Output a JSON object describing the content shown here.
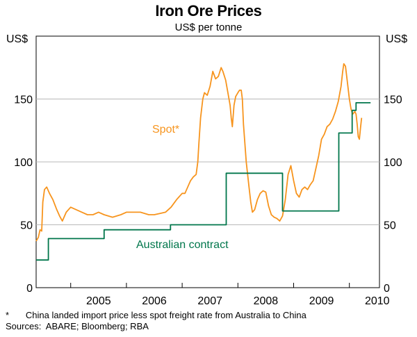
{
  "chart_data": {
    "type": "line",
    "title": "Iron Ore Prices",
    "subtitle": "US$ per tonne",
    "ylabel_left": "US$",
    "ylabel_right": "US$",
    "ylim": [
      0,
      200
    ],
    "yticks": [
      0,
      50,
      100,
      150
    ],
    "xlim": [
      2004.38,
      2010.54
    ],
    "xtick_labels": [
      {
        "label": "2005",
        "year": 2005
      },
      {
        "label": "2006",
        "year": 2006
      },
      {
        "label": "2007",
        "year": 2007
      },
      {
        "label": "2008",
        "year": 2008
      },
      {
        "label": "2009",
        "year": 2009
      },
      {
        "label": "2010",
        "year": 2010
      }
    ],
    "year_boundaries": [
      2005,
      2006,
      2007,
      2008,
      2009,
      2010
    ],
    "grid": true,
    "series": [
      {
        "name": "Spot*",
        "label": "Spot*",
        "color": "#f7941d",
        "points": [
          [
            2004.38,
            37
          ],
          [
            2004.42,
            40
          ],
          [
            2004.45,
            46
          ],
          [
            2004.48,
            45
          ],
          [
            2004.5,
            68
          ],
          [
            2004.53,
            78
          ],
          [
            2004.57,
            80
          ],
          [
            2004.62,
            75
          ],
          [
            2004.68,
            70
          ],
          [
            2004.75,
            62
          ],
          [
            2004.8,
            57
          ],
          [
            2004.85,
            53
          ],
          [
            2004.92,
            60
          ],
          [
            2005.0,
            64
          ],
          [
            2005.1,
            62
          ],
          [
            2005.2,
            60
          ],
          [
            2005.3,
            58
          ],
          [
            2005.4,
            58
          ],
          [
            2005.5,
            60
          ],
          [
            2005.6,
            58
          ],
          [
            2005.75,
            56
          ],
          [
            2005.9,
            58
          ],
          [
            2006.0,
            60
          ],
          [
            2006.1,
            60
          ],
          [
            2006.25,
            60
          ],
          [
            2006.4,
            58
          ],
          [
            2006.5,
            58
          ],
          [
            2006.6,
            59
          ],
          [
            2006.7,
            60
          ],
          [
            2006.8,
            64
          ],
          [
            2006.9,
            70
          ],
          [
            2007.0,
            75
          ],
          [
            2007.05,
            75
          ],
          [
            2007.1,
            80
          ],
          [
            2007.15,
            85
          ],
          [
            2007.2,
            88
          ],
          [
            2007.25,
            90
          ],
          [
            2007.28,
            100
          ],
          [
            2007.3,
            115
          ],
          [
            2007.33,
            135
          ],
          [
            2007.37,
            150
          ],
          [
            2007.4,
            155
          ],
          [
            2007.45,
            153
          ],
          [
            2007.5,
            160
          ],
          [
            2007.55,
            172
          ],
          [
            2007.6,
            166
          ],
          [
            2007.65,
            168
          ],
          [
            2007.7,
            175
          ],
          [
            2007.73,
            172
          ],
          [
            2007.78,
            165
          ],
          [
            2007.82,
            155
          ],
          [
            2007.86,
            145
          ],
          [
            2007.88,
            135
          ],
          [
            2007.9,
            128
          ],
          [
            2007.93,
            145
          ],
          [
            2007.96,
            152
          ],
          [
            2008.0,
            155
          ],
          [
            2008.03,
            157
          ],
          [
            2008.06,
            157
          ],
          [
            2008.08,
            150
          ],
          [
            2008.1,
            130
          ],
          [
            2008.15,
            100
          ],
          [
            2008.2,
            80
          ],
          [
            2008.23,
            68
          ],
          [
            2008.26,
            60
          ],
          [
            2008.3,
            62
          ],
          [
            2008.35,
            70
          ],
          [
            2008.4,
            75
          ],
          [
            2008.45,
            77
          ],
          [
            2008.5,
            76
          ],
          [
            2008.55,
            65
          ],
          [
            2008.6,
            58
          ],
          [
            2008.65,
            56
          ],
          [
            2008.7,
            55
          ],
          [
            2008.75,
            53
          ],
          [
            2008.8,
            57
          ],
          [
            2008.85,
            70
          ],
          [
            2008.9,
            90
          ],
          [
            2008.95,
            97
          ],
          [
            2009.0,
            85
          ],
          [
            2009.05,
            75
          ],
          [
            2009.1,
            72
          ],
          [
            2009.15,
            78
          ],
          [
            2009.2,
            80
          ],
          [
            2009.25,
            78
          ],
          [
            2009.3,
            82
          ],
          [
            2009.35,
            85
          ],
          [
            2009.4,
            95
          ],
          [
            2009.45,
            105
          ],
          [
            2009.5,
            118
          ],
          [
            2009.55,
            122
          ],
          [
            2009.6,
            128
          ],
          [
            2009.65,
            130
          ],
          [
            2009.7,
            134
          ],
          [
            2009.75,
            140
          ],
          [
            2009.8,
            148
          ],
          [
            2009.85,
            160
          ],
          [
            2009.88,
            172
          ],
          [
            2009.9,
            178
          ],
          [
            2009.93,
            176
          ],
          [
            2009.96,
            165
          ],
          [
            2010.0,
            150
          ],
          [
            2010.03,
            142
          ],
          [
            2010.06,
            138
          ],
          [
            2010.1,
            140
          ],
          [
            2010.12,
            138
          ],
          [
            2010.14,
            130
          ],
          [
            2010.16,
            120
          ],
          [
            2010.18,
            118
          ],
          [
            2010.2,
            127
          ],
          [
            2010.22,
            135
          ]
        ]
      },
      {
        "name": "Australian contract",
        "label": "Australian contract",
        "color": "#00764b",
        "points": [
          [
            2004.38,
            22
          ],
          [
            2004.6,
            22
          ],
          [
            2004.6,
            39
          ],
          [
            2005.6,
            39
          ],
          [
            2005.6,
            46
          ],
          [
            2006.79,
            46
          ],
          [
            2006.79,
            50
          ],
          [
            2007.79,
            50
          ],
          [
            2007.79,
            91
          ],
          [
            2008.8,
            91
          ],
          [
            2008.8,
            61
          ],
          [
            2009.81,
            61
          ],
          [
            2009.81,
            123
          ],
          [
            2010.05,
            123
          ],
          [
            2010.05,
            141
          ],
          [
            2010.12,
            141
          ],
          [
            2010.12,
            147
          ],
          [
            2010.38,
            147
          ]
        ]
      }
    ],
    "notes": [
      "*\tChina landed import price less spot freight rate from Australia to China",
      "Sources:\tABARE; Bloomberg; RBA"
    ]
  }
}
